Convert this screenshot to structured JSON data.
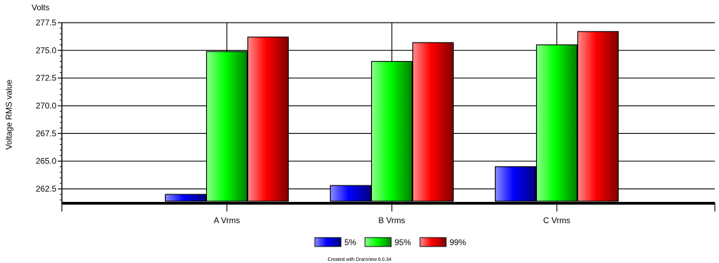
{
  "chart_data": {
    "type": "bar",
    "title": "",
    "unit_label": "Volts",
    "ylabel": "Voltage RMS value",
    "xlabel": "",
    "categories": [
      "A Vrms",
      "B Vrms",
      "C Vrms"
    ],
    "series": [
      {
        "name": "5%",
        "values": [
          262.0,
          262.8,
          264.5
        ],
        "color": "#0000ff"
      },
      {
        "name": "95%",
        "values": [
          274.9,
          274.0,
          275.5
        ],
        "color": "#00ff00"
      },
      {
        "name": "99%",
        "values": [
          276.2,
          275.7,
          276.7
        ],
        "color": "#ff0000"
      }
    ],
    "ylim": [
      261.2,
      277.5
    ],
    "yticks": [
      "262.5",
      "265.0",
      "267.5",
      "270.0",
      "272.5",
      "275.0",
      "277.5"
    ],
    "grid": true,
    "legend_position": "bottom-center"
  },
  "footer": "Created with DranView 6.0.34"
}
